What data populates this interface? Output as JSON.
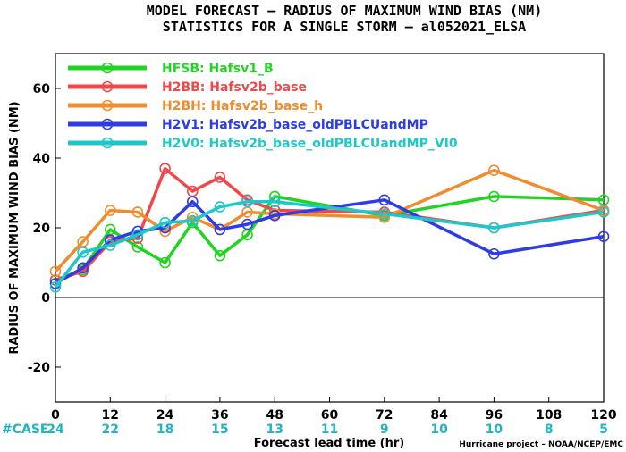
{
  "title_line1": "MODEL FORECAST – RADIUS OF MAXIMUM WIND BIAS (NM)",
  "title_line2": "STATISTICS FOR A SINGLE STORM – al052021_ELSA",
  "credit": "Hurricane project – NOAA/NCEP/EMC",
  "case_label": "#CASE",
  "case_color": "#1fb5c4",
  "chart_data": {
    "type": "line",
    "xlabel": "Forecast lead time (hr)",
    "ylabel": "RADIUS OF MAXIMUM WIND BIAS (NM)",
    "xlim": [
      0,
      120
    ],
    "ylim": [
      -30,
      70
    ],
    "xticks": [
      0,
      12,
      24,
      36,
      48,
      60,
      72,
      84,
      96,
      108,
      120
    ],
    "yticks": [
      -20,
      0,
      20,
      40,
      60
    ],
    "case_counts": [
      {
        "x": 0,
        "n": "24"
      },
      {
        "x": 12,
        "n": "22"
      },
      {
        "x": 24,
        "n": "18"
      },
      {
        "x": 36,
        "n": "15"
      },
      {
        "x": 48,
        "n": "13"
      },
      {
        "x": 60,
        "n": "11"
      },
      {
        "x": 72,
        "n": "9"
      },
      {
        "x": 84,
        "n": "10"
      },
      {
        "x": 96,
        "n": "10"
      },
      {
        "x": 108,
        "n": "8"
      },
      {
        "x": 120,
        "n": "5"
      }
    ],
    "legend_position": "top-left",
    "series": [
      {
        "id": "HFSB",
        "name": "HFSB: Hafsv1_B",
        "color": "#22d422",
        "x": [
          0,
          6,
          12,
          18,
          24,
          30,
          36,
          42,
          48,
          72,
          96,
          120
        ],
        "y": [
          5,
          8,
          19.5,
          14.5,
          10,
          21.5,
          12,
          18,
          29,
          23.5,
          29,
          28
        ]
      },
      {
        "id": "H2BB",
        "name": "H2BB: Hafsv2b_base",
        "color": "#f04848",
        "x": [
          0,
          6,
          12,
          18,
          24,
          30,
          36,
          42,
          48,
          72,
          96,
          120
        ],
        "y": [
          5,
          7.5,
          16,
          17,
          37,
          30.5,
          34.5,
          28,
          25,
          24.5,
          20,
          25
        ]
      },
      {
        "id": "H2BH",
        "name": "H2BH: Hafsv2b_base_h",
        "color": "#f08c30",
        "x": [
          0,
          6,
          12,
          18,
          24,
          30,
          36,
          42,
          48,
          72,
          96,
          120
        ],
        "y": [
          7.5,
          16,
          25,
          24.5,
          19,
          23,
          19.5,
          24.5,
          24,
          23,
          36.5,
          25
        ]
      },
      {
        "id": "H2V1",
        "name": "H2V1: Hafsv2b_base_oldPBLCUandMP",
        "color": "#2e3ce8",
        "x": [
          0,
          6,
          12,
          18,
          24,
          30,
          36,
          42,
          48,
          72,
          96,
          120
        ],
        "y": [
          4,
          8.5,
          16.5,
          19,
          20,
          27.5,
          19.5,
          21,
          23.5,
          28,
          12.5,
          17.5
        ]
      },
      {
        "id": "H2V0",
        "name": "H2V0: Hafsv2b_base_oldPBLCUandMP_VI0",
        "color": "#1fc8c8",
        "x": [
          0,
          6,
          12,
          18,
          24,
          30,
          36,
          42,
          48,
          72,
          96,
          120
        ],
        "y": [
          3,
          13,
          15,
          18,
          21.5,
          22,
          26,
          27.5,
          27.5,
          24,
          20,
          24.5
        ]
      }
    ]
  }
}
